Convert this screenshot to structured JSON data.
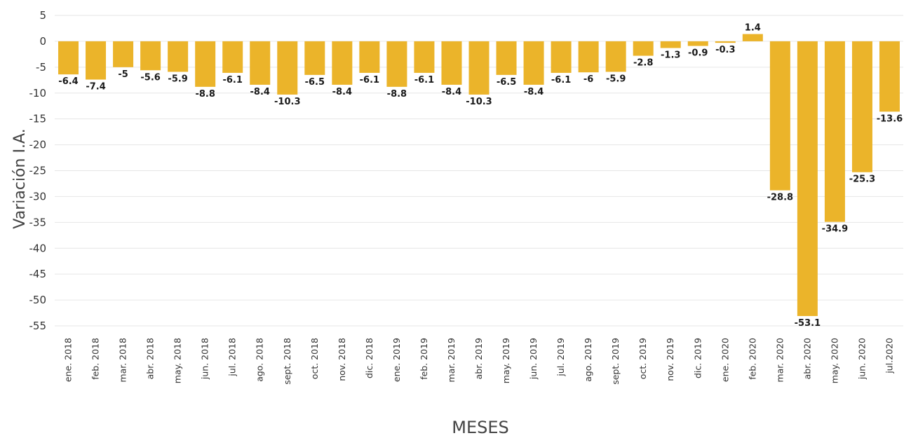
{
  "chart_data": {
    "type": "bar",
    "title": "",
    "xlabel": "MESES",
    "ylabel": "Variación I.A.",
    "ylim": [
      -55,
      5
    ],
    "yticks": [
      5,
      0,
      -5,
      -10,
      -15,
      -20,
      -25,
      -30,
      -35,
      -40,
      -45,
      -50,
      -55
    ],
    "grid": true,
    "bar_color": "#ebb42a",
    "categories": [
      "ene. 2018",
      "feb. 2018",
      "mar. 2018",
      "abr. 2018",
      "may. 2018",
      "jun. 2018",
      "jul. 2018",
      "ago. 2018",
      "sept. 2018",
      "oct. 2018",
      "nov. 2018",
      "dic. 2018",
      "ene. 2019",
      "feb. 2019",
      "mar. 2019",
      "abr. 2019",
      "may. 2019",
      "jun. 2019",
      "jul. 2019",
      "ago. 2019",
      "sept. 2019",
      "oct. 2019",
      "nov. 2019",
      "dic. 2019",
      "ene. 2020",
      "feb. 2020",
      "mar. 2020",
      "abr. 2020",
      "may. 2020",
      "jun. 2020",
      "jul.2020"
    ],
    "values": [
      -6.4,
      -7.4,
      -5,
      -5.6,
      -5.9,
      -8.8,
      -6.1,
      -8.4,
      -10.3,
      -6.5,
      -8.4,
      -6.1,
      -8.8,
      -6.1,
      -8.4,
      -10.3,
      -6.5,
      -8.4,
      -6.1,
      -6,
      -5.9,
      -2.8,
      -1.3,
      -0.9,
      -0.3,
      1.4,
      -28.8,
      -53.1,
      -34.9,
      -25.3,
      -13.6
    ],
    "data_labels": [
      "-6.4",
      "-7.4",
      "-5",
      "-5.6",
      "-5.9",
      "-8.8",
      "-6.1",
      "-8.4",
      "-10.3",
      "-6.5",
      "-8.4",
      "-6.1",
      "-8.8",
      "-6.1",
      "-8.4",
      "-10.3",
      "-6.5",
      "-8.4",
      "-6.1",
      "-6",
      "-5.9",
      "-2.8",
      "-1.3",
      "-0.9",
      "-0.3",
      "1.4",
      "-28.8",
      "-53.1",
      "-34.9",
      "-25.3",
      "-13.6"
    ]
  }
}
